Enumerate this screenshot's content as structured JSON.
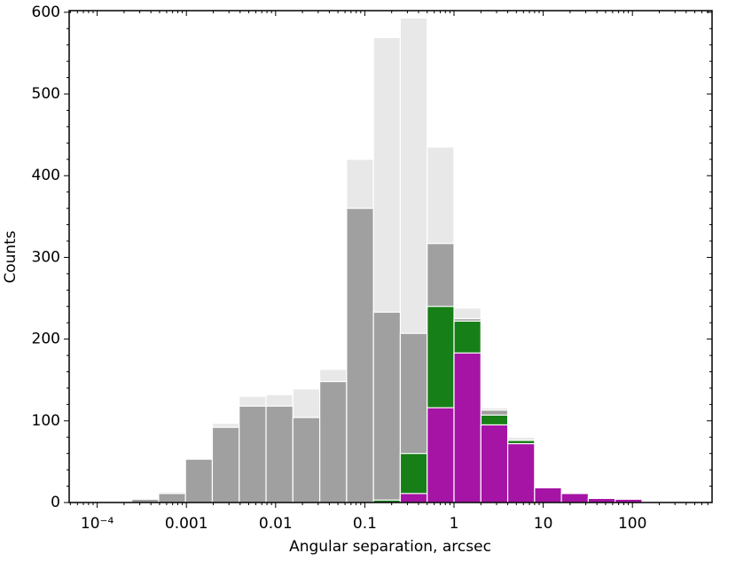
{
  "chart_data": {
    "type": "histogram",
    "xlabel": "Angular separation, arcsec",
    "ylabel": "Counts",
    "bins": [
      0.000244140625,
      0.00048828125,
      0.0009765625,
      0.001953125,
      0.00390625,
      0.0078125,
      0.015625,
      0.03125,
      0.0625,
      0.125,
      0.25,
      0.5,
      1,
      2,
      4,
      8,
      16,
      32,
      64,
      128
    ],
    "series": [
      {
        "color": "#e8e8e8",
        "values": [
          5,
          13,
          54,
          97,
          130,
          132,
          139,
          163,
          420,
          569,
          593,
          435,
          238,
          116,
          80,
          21,
          14,
          8,
          6
        ]
      },
      {
        "color": "#a0a0a0",
        "values": [
          4,
          11,
          53,
          92,
          118,
          118,
          104,
          148,
          360,
          233,
          207,
          317,
          225,
          113,
          75,
          20,
          13,
          7,
          5
        ]
      },
      {
        "color": "#177f17",
        "values": [
          0,
          0,
          0,
          0,
          0,
          0,
          0,
          0,
          0,
          3,
          60,
          240,
          222,
          107,
          76,
          19,
          12,
          6,
          5
        ]
      },
      {
        "color": "#a514a5",
        "values": [
          0,
          0,
          0,
          0,
          0,
          0,
          0,
          0,
          0,
          0,
          11,
          116,
          183,
          95,
          72,
          18,
          11,
          5,
          4
        ]
      }
    ],
    "xscale": "log",
    "xlim": [
      4.85e-05,
      781
    ],
    "xticks": [
      {
        "value": 0.0001,
        "label": "10⁻⁴"
      },
      0.001,
      0.01,
      0.1,
      1,
      10,
      100
    ],
    "ylim": [
      0,
      602
    ],
    "yticks": [
      0,
      100,
      200,
      300,
      400,
      500,
      600
    ],
    "minor_ticks": true
  }
}
